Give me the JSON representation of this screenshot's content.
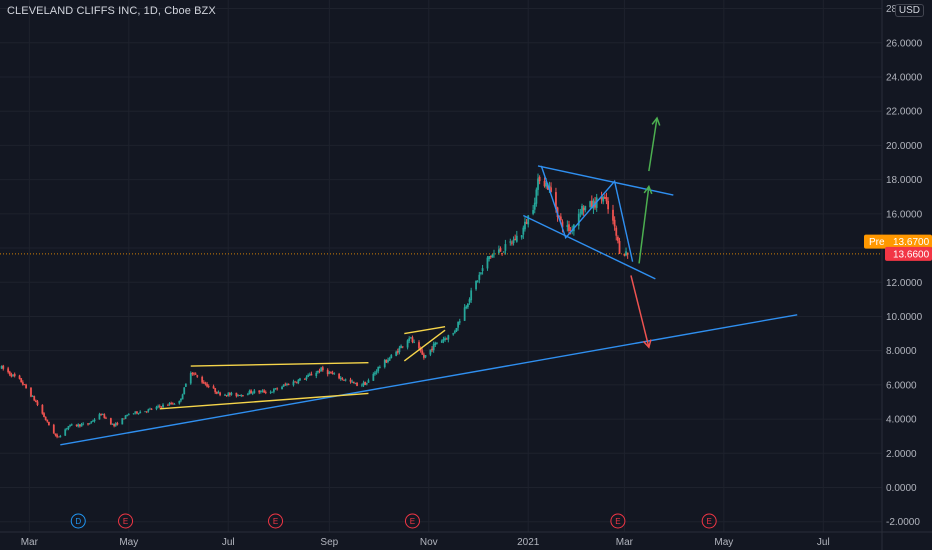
{
  "header": {
    "title": "CLEVELAND CLIFFS INC, 1D, Cboe BZX",
    "currency": "USD"
  },
  "colors": {
    "background": "#131722",
    "grid": "#1e222d",
    "text": "#b2b5be",
    "up": "#26a69a",
    "down": "#ef5350",
    "trendline_blue": "#2f8ff0",
    "pattern_yellow": "#f6d54a",
    "arrow_green": "#4caf50",
    "arrow_red": "#ef5350",
    "pre_label": "#ff9800",
    "last_label": "#f23645",
    "event_dividend": "#2196f3",
    "event_earnings": "#f23645"
  },
  "chart_data": {
    "type": "candlestick",
    "title": "CLEVELAND CLIFFS INC, 1D, Cboe BZX",
    "currency": "USD",
    "x_ticks": [
      {
        "label": "Mar",
        "date": "2020-03-01"
      },
      {
        "label": "May",
        "date": "2020-05-01"
      },
      {
        "label": "Jul",
        "date": "2020-07-01"
      },
      {
        "label": "Sep",
        "date": "2020-09-01"
      },
      {
        "label": "Nov",
        "date": "2020-11-01"
      },
      {
        "label": "2021",
        "date": "2021-01-01"
      },
      {
        "label": "Mar",
        "date": "2021-03-01"
      },
      {
        "label": "May",
        "date": "2021-05-01"
      },
      {
        "label": "Jul",
        "date": "2021-07-01"
      }
    ],
    "y_ticks": [
      "-2.0000",
      "0.0000",
      "2.0000",
      "4.0000",
      "6.0000",
      "8.0000",
      "10.0000",
      "12.0000",
      "14.0000",
      "16.0000",
      "18.0000",
      "20.0000",
      "22.0000",
      "24.0000",
      "26.0000",
      "28.0000"
    ],
    "ylim": [
      -2.6,
      28.5
    ],
    "xlim": [
      "2020-02-12",
      "2021-08-06"
    ],
    "price_path": [
      [
        "2020-02-13",
        7.0
      ],
      [
        "2020-02-25",
        6.2
      ],
      [
        "2020-03-05",
        5.0
      ],
      [
        "2020-03-12",
        3.8
      ],
      [
        "2020-03-18",
        2.9
      ],
      [
        "2020-03-25",
        3.6
      ],
      [
        "2020-04-06",
        3.7
      ],
      [
        "2020-04-14",
        4.3
      ],
      [
        "2020-04-22",
        3.6
      ],
      [
        "2020-05-01",
        4.3
      ],
      [
        "2020-05-12",
        4.5
      ],
      [
        "2020-05-22",
        4.8
      ],
      [
        "2020-06-01",
        5.0
      ],
      [
        "2020-06-08",
        6.8
      ],
      [
        "2020-06-15",
        6.2
      ],
      [
        "2020-06-25",
        5.5
      ],
      [
        "2020-07-06",
        5.4
      ],
      [
        "2020-07-16",
        5.6
      ],
      [
        "2020-07-27",
        5.6
      ],
      [
        "2020-08-05",
        6.0
      ],
      [
        "2020-08-17",
        6.4
      ],
      [
        "2020-08-27",
        6.9
      ],
      [
        "2020-09-08",
        6.4
      ],
      [
        "2020-09-18",
        6.0
      ],
      [
        "2020-09-24",
        6.1
      ],
      [
        "2020-10-01",
        7.0
      ],
      [
        "2020-10-12",
        7.9
      ],
      [
        "2020-10-20",
        8.8
      ],
      [
        "2020-10-29",
        7.6
      ],
      [
        "2020-11-06",
        8.5
      ],
      [
        "2020-11-16",
        9.0
      ],
      [
        "2020-11-23",
        10.5
      ],
      [
        "2020-11-30",
        12.0
      ],
      [
        "2020-12-08",
        13.5
      ],
      [
        "2020-12-18",
        14.0
      ],
      [
        "2020-12-28",
        14.9
      ],
      [
        "2021-01-04",
        16.5
      ],
      [
        "2021-01-08",
        18.2
      ],
      [
        "2021-01-14",
        17.5
      ],
      [
        "2021-01-21",
        15.5
      ],
      [
        "2021-01-27",
        15.0
      ],
      [
        "2021-02-02",
        16.3
      ],
      [
        "2021-02-09",
        16.5
      ],
      [
        "2021-02-16",
        17.0
      ],
      [
        "2021-02-22",
        15.5
      ],
      [
        "2021-02-26",
        13.9
      ],
      [
        "2021-03-03",
        13.66
      ]
    ],
    "current_price": {
      "label": "13.6600",
      "value": 13.66
    },
    "premarket_price": {
      "label": "Pre",
      "value_label": "13.6700",
      "value": 13.67
    },
    "events": [
      {
        "date": "2020-03-31",
        "label": "D",
        "type": "dividend"
      },
      {
        "date": "2020-04-29",
        "label": "E",
        "type": "earnings"
      },
      {
        "date": "2020-07-30",
        "label": "E",
        "type": "earnings"
      },
      {
        "date": "2020-10-22",
        "label": "E",
        "type": "earnings"
      },
      {
        "date": "2021-02-25",
        "label": "E",
        "type": "earnings"
      },
      {
        "date": "2021-04-22",
        "label": "E",
        "type": "earnings"
      }
    ],
    "drawings": [
      {
        "kind": "trendline",
        "color": "blue",
        "from": [
          "2020-03-20",
          2.5
        ],
        "to": [
          "2021-06-15",
          10.1
        ]
      },
      {
        "kind": "trendline",
        "color": "yellow",
        "from": [
          "2020-06-08",
          7.1
        ],
        "to": [
          "2020-09-25",
          7.3
        ]
      },
      {
        "kind": "trendline",
        "color": "yellow",
        "from": [
          "2020-05-20",
          4.6
        ],
        "to": [
          "2020-09-25",
          5.5
        ]
      },
      {
        "kind": "trendline",
        "color": "yellow",
        "from": [
          "2020-10-17",
          9.0
        ],
        "to": [
          "2020-11-11",
          9.4
        ]
      },
      {
        "kind": "trendline",
        "color": "yellow",
        "from": [
          "2020-10-17",
          7.4
        ],
        "to": [
          "2020-11-11",
          9.2
        ]
      },
      {
        "kind": "trendline",
        "color": "blue",
        "from": [
          "2021-01-07",
          18.8
        ],
        "to": [
          "2021-03-31",
          17.1
        ]
      },
      {
        "kind": "trendline",
        "color": "blue",
        "from": [
          "2020-12-29",
          15.9
        ],
        "to": [
          "2021-03-20",
          12.2
        ]
      },
      {
        "kind": "polyline",
        "color": "blue",
        "points": [
          [
            "2021-01-09",
            18.8
          ],
          [
            "2021-01-24",
            14.6
          ],
          [
            "2021-02-23",
            17.9
          ],
          [
            "2021-03-06",
            13.2
          ]
        ]
      },
      {
        "kind": "arrow",
        "color": "green",
        "from": [
          "2021-03-10",
          13.1
        ],
        "to": [
          "2021-03-16",
          17.6
        ]
      },
      {
        "kind": "arrow",
        "color": "green",
        "from": [
          "2021-03-16",
          18.5
        ],
        "to": [
          "2021-03-21",
          21.6
        ]
      },
      {
        "kind": "arrow",
        "color": "red",
        "from": [
          "2021-03-05",
          12.4
        ],
        "to": [
          "2021-03-16",
          8.2
        ]
      }
    ]
  }
}
